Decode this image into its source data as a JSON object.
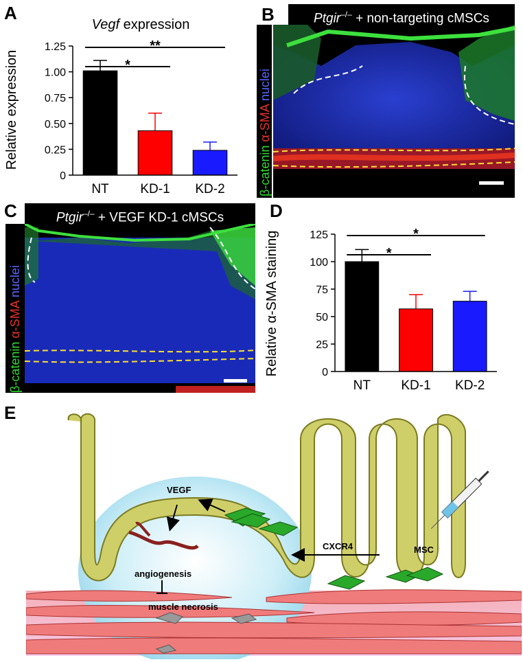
{
  "panels": {
    "A": {
      "letter": "A"
    },
    "B": {
      "letter": "B",
      "title_gene": "Ptgir",
      "title_sup": "–/–",
      "title_rest": " + non-targeting cMSCs"
    },
    "C": {
      "letter": "C",
      "title_gene": "Ptgir",
      "title_sup": "–/–",
      "title_rest": " + VEGF KD-1 cMSCs"
    },
    "D": {
      "letter": "D"
    },
    "E": {
      "letter": "E"
    }
  },
  "stain_label": {
    "part1": "β-catenin",
    "part2": " α-SMA",
    "part3": " nuclei"
  },
  "chart_data": [
    {
      "type": "bar",
      "title_italic": "Vegf",
      "title_rest": " expression",
      "ylabel": "Relative expression",
      "categories": [
        "NT",
        "KD-1",
        "KD-2"
      ],
      "values": [
        1.01,
        0.43,
        0.24
      ],
      "errors": [
        0.1,
        0.17,
        0.08
      ],
      "colors": [
        "#000000",
        "#ff0000",
        "#1a1aff"
      ],
      "yticks": [
        "0",
        "0.25",
        "0.50",
        "0.75",
        "1.00",
        "1.25"
      ],
      "ylim": [
        0,
        1.25
      ],
      "significance": [
        {
          "from": 0,
          "to": 1,
          "label": "*"
        },
        {
          "from": 0,
          "to": 2,
          "label": "**"
        }
      ]
    },
    {
      "type": "bar",
      "ylabel": "Relative α-SMA staining",
      "categories": [
        "NT",
        "KD-1",
        "KD-2"
      ],
      "values": [
        100,
        57,
        64
      ],
      "errors": [
        11,
        13,
        9
      ],
      "colors": [
        "#000000",
        "#ff0000",
        "#1a1aff"
      ],
      "yticks": [
        "0",
        "25",
        "50",
        "75",
        "100",
        "125"
      ],
      "ylim": [
        0,
        125
      ],
      "significance": [
        {
          "from": 0,
          "to": 1,
          "label": "*"
        },
        {
          "from": 0,
          "to": 2,
          "label": "*"
        }
      ]
    }
  ],
  "diagram": {
    "vegf": "VEGF",
    "angiogenesis": "angiogenesis",
    "necrosis": "muscle necrosis",
    "cxcr4": "CXCR4",
    "msc": "MSC"
  }
}
